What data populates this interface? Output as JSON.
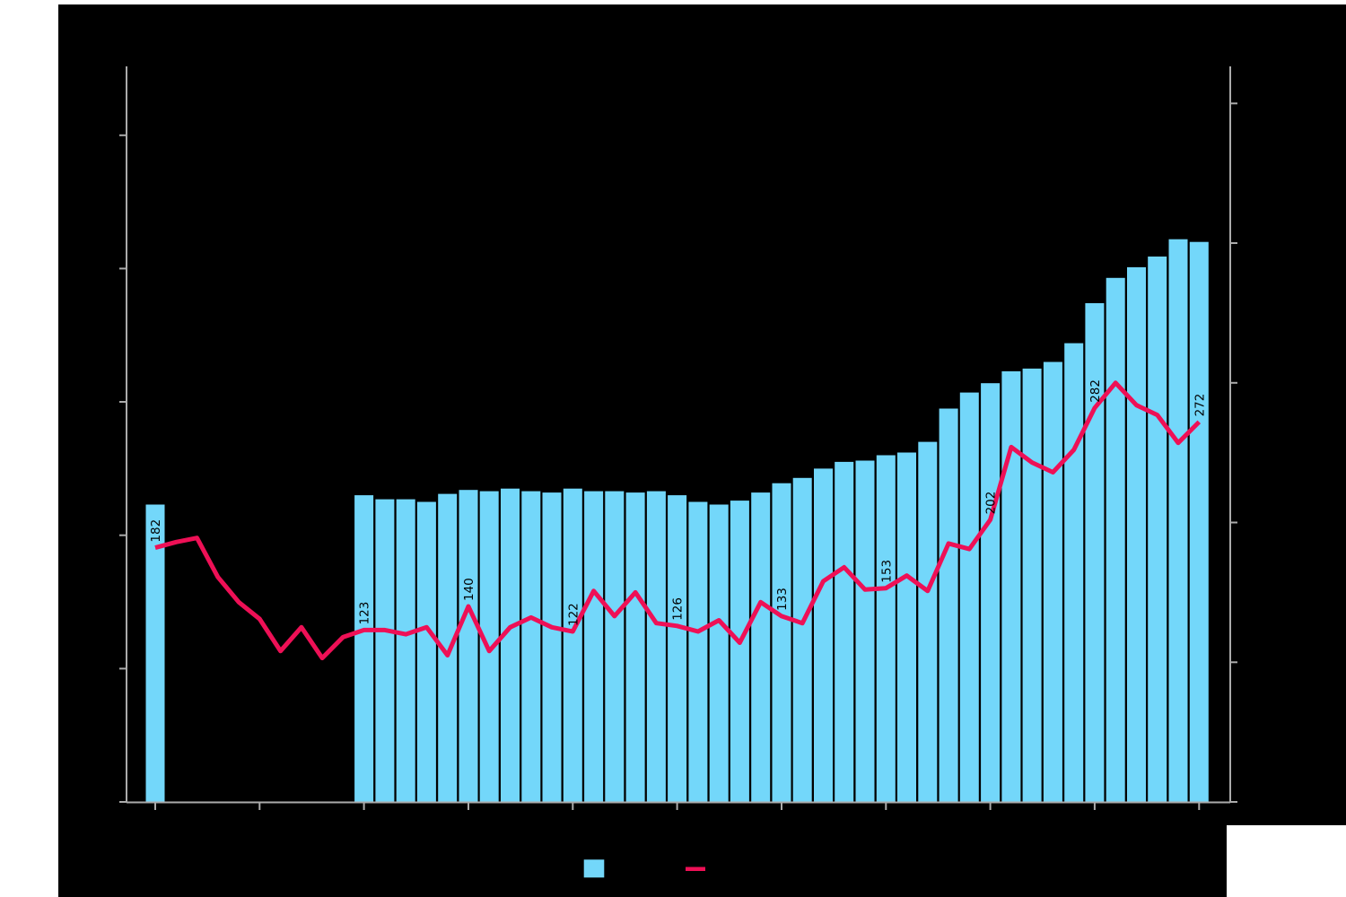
{
  "page": {
    "background": "#ffffff",
    "chart_canvas_background": "#000000",
    "axis_text_visible": false,
    "title_visible": false
  },
  "colors": {
    "bar_fill": "#73D7FA",
    "line_stroke": "#EE1056",
    "axis_stroke": "#ABABAB",
    "point_label_text": "#000000"
  },
  "chart_data": {
    "type": "bar+line",
    "title": "",
    "xlabel": "",
    "ylabel_left": "",
    "ylabel_right": "",
    "n_points": 51,
    "x_axis": {
      "tick_indices": [
        0,
        5,
        10,
        15,
        20,
        25,
        30,
        35,
        40,
        45,
        50
      ],
      "tick_labels_visible": false
    },
    "y_axis_left": {
      "range_ticks": [
        0,
        5
      ],
      "n_ticks": 6,
      "tick_labels_visible": false,
      "note": "bars plotted on this axis; tick text rendered black on black (not visible)"
    },
    "y_axis_right": {
      "ticks_est": [
        0,
        100,
        200,
        300,
        400,
        500
      ],
      "tick_labels_visible": false,
      "note": "line plotted on this axis; tick text not visible"
    },
    "series": [
      {
        "name": "bars-series",
        "kind": "bar",
        "axis": "left",
        "values_in_left_axis_tick_units": [
          2.23,
          null,
          null,
          null,
          null,
          null,
          null,
          null,
          null,
          null,
          2.3,
          2.27,
          2.27,
          2.25,
          2.31,
          2.34,
          2.33,
          2.35,
          2.33,
          2.32,
          2.35,
          2.33,
          2.33,
          2.32,
          2.33,
          2.3,
          2.25,
          2.23,
          2.26,
          2.32,
          2.39,
          2.43,
          2.5,
          2.55,
          2.56,
          2.6,
          2.62,
          2.7,
          2.95,
          3.07,
          3.14,
          3.23,
          3.25,
          3.3,
          3.44,
          3.74,
          3.93,
          4.01,
          4.09,
          4.22,
          4.2
        ]
      },
      {
        "name": "line-series",
        "kind": "line",
        "axis": "right",
        "values": [
          182,
          186,
          189,
          161,
          143,
          131,
          108,
          125,
          103,
          118,
          123,
          123,
          120,
          125,
          105,
          140,
          108,
          125,
          132,
          125,
          122,
          151,
          133,
          150,
          128,
          126,
          122,
          130,
          114,
          143,
          133,
          128,
          158,
          168,
          152,
          153,
          162,
          151,
          185,
          181,
          202,
          254,
          243,
          236,
          252,
          282,
          300,
          284,
          277,
          257,
          272
        ]
      }
    ],
    "point_labels": [
      {
        "index": 0,
        "text": "182"
      },
      {
        "index": 10,
        "text": "123"
      },
      {
        "index": 15,
        "text": "140"
      },
      {
        "index": 20,
        "text": "122"
      },
      {
        "index": 25,
        "text": "126"
      },
      {
        "index": 30,
        "text": "133"
      },
      {
        "index": 35,
        "text": "153"
      },
      {
        "index": 40,
        "text": "202"
      },
      {
        "index": 45,
        "text": "282"
      },
      {
        "index": 50,
        "text": "272"
      }
    ],
    "legend": {
      "position": "bottom-center",
      "items": [
        {
          "name": "bars-series",
          "swatch": "square",
          "label_visible": false
        },
        {
          "name": "line-series",
          "swatch": "line",
          "label_visible": false
        }
      ]
    },
    "grid": false
  }
}
